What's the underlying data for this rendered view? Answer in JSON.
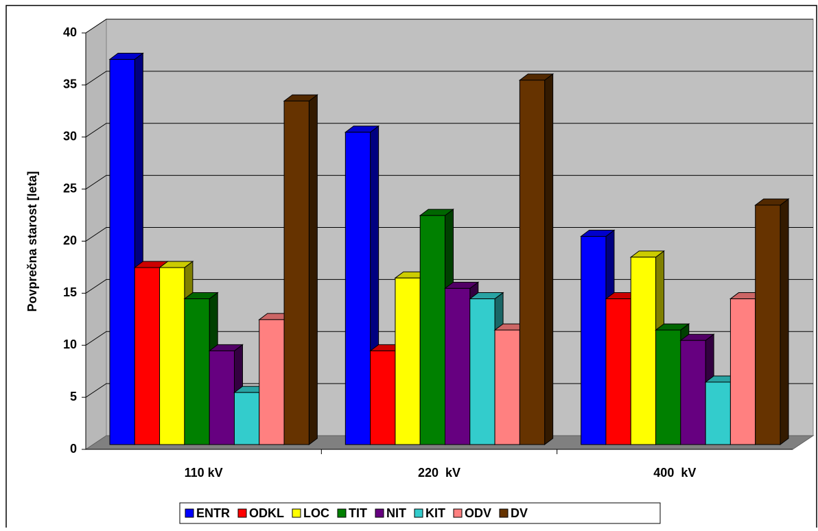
{
  "chart_data": {
    "type": "bar3d",
    "ylabel": "Povprečna starost [leta]",
    "categories": [
      "110 kV",
      "220  kV",
      "400  kV"
    ],
    "series": [
      {
        "name": "ENTR",
        "color": "#0000ff",
        "values": [
          37,
          30,
          20
        ]
      },
      {
        "name": "ODKL",
        "color": "#ff0000",
        "values": [
          17,
          9,
          14
        ]
      },
      {
        "name": "LOC",
        "color": "#ffff00",
        "values": [
          17,
          16,
          18
        ]
      },
      {
        "name": "TIT",
        "color": "#008000",
        "values": [
          14,
          22,
          11
        ]
      },
      {
        "name": "NIT",
        "color": "#660080",
        "values": [
          9,
          15,
          10
        ]
      },
      {
        "name": "KIT",
        "color": "#33cccc",
        "values": [
          5,
          14,
          6
        ]
      },
      {
        "name": "ODV",
        "color": "#ff8080",
        "values": [
          12,
          11,
          14
        ]
      },
      {
        "name": "DV",
        "color": "#663300",
        "values": [
          33,
          35,
          23
        ]
      }
    ],
    "ylim": [
      0,
      40
    ],
    "yticks": [
      0,
      5,
      10,
      15,
      20,
      25,
      30,
      35,
      40
    ],
    "grid": true,
    "legend": "bottom"
  }
}
